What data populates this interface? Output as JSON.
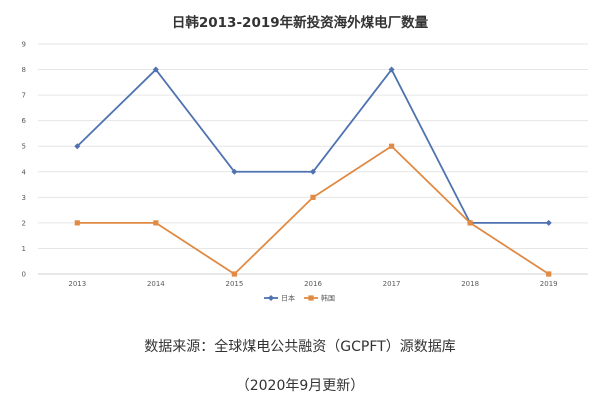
{
  "chart_data": {
    "type": "line",
    "title": "日韩2013-2019年新投资海外煤电厂数量",
    "categories": [
      "2013",
      "2014",
      "2015",
      "2016",
      "2017",
      "2018",
      "2019"
    ],
    "series": [
      {
        "name": "日本",
        "values": [
          5,
          8,
          4,
          4,
          8,
          2,
          2
        ],
        "color": "#4f72b0",
        "marker": "diamond"
      },
      {
        "name": "韩国",
        "values": [
          2,
          2,
          0,
          3,
          5,
          2,
          0
        ],
        "color": "#e08a44",
        "marker": "square"
      }
    ],
    "ylim": [
      0,
      9
    ],
    "yticks": [
      0,
      1,
      2,
      3,
      4,
      5,
      6,
      7,
      8,
      9
    ],
    "grid": true,
    "legend_position": "bottom"
  },
  "notes": {
    "source": "数据来源：全球煤电公共融资（GCPFT）源数据库",
    "update": "（2020年9月更新）"
  }
}
